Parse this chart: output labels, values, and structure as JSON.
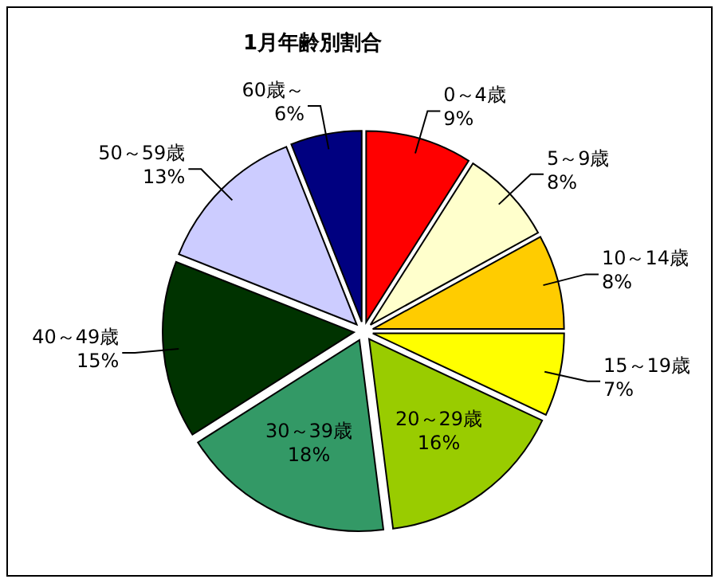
{
  "chart_data": {
    "type": "pie",
    "title": "1月年齢別割合",
    "categories": [
      "0～4歳",
      "5～9歳",
      "10～14歳",
      "15～19歳",
      "20～29歳",
      "30～39歳",
      "40～49歳",
      "50～59歳",
      "60歳～"
    ],
    "values": [
      9,
      8,
      8,
      7,
      16,
      18,
      15,
      13,
      6
    ],
    "value_labels": [
      "9%",
      "8%",
      "8%",
      "7%",
      "16%",
      "18%",
      "15%",
      "13%",
      "6%"
    ],
    "colors": [
      "#ff0000",
      "#ffffcc",
      "#ffcc00",
      "#ffff00",
      "#99cc00",
      "#339966",
      "#003300",
      "#ccccff",
      "#000080"
    ]
  }
}
